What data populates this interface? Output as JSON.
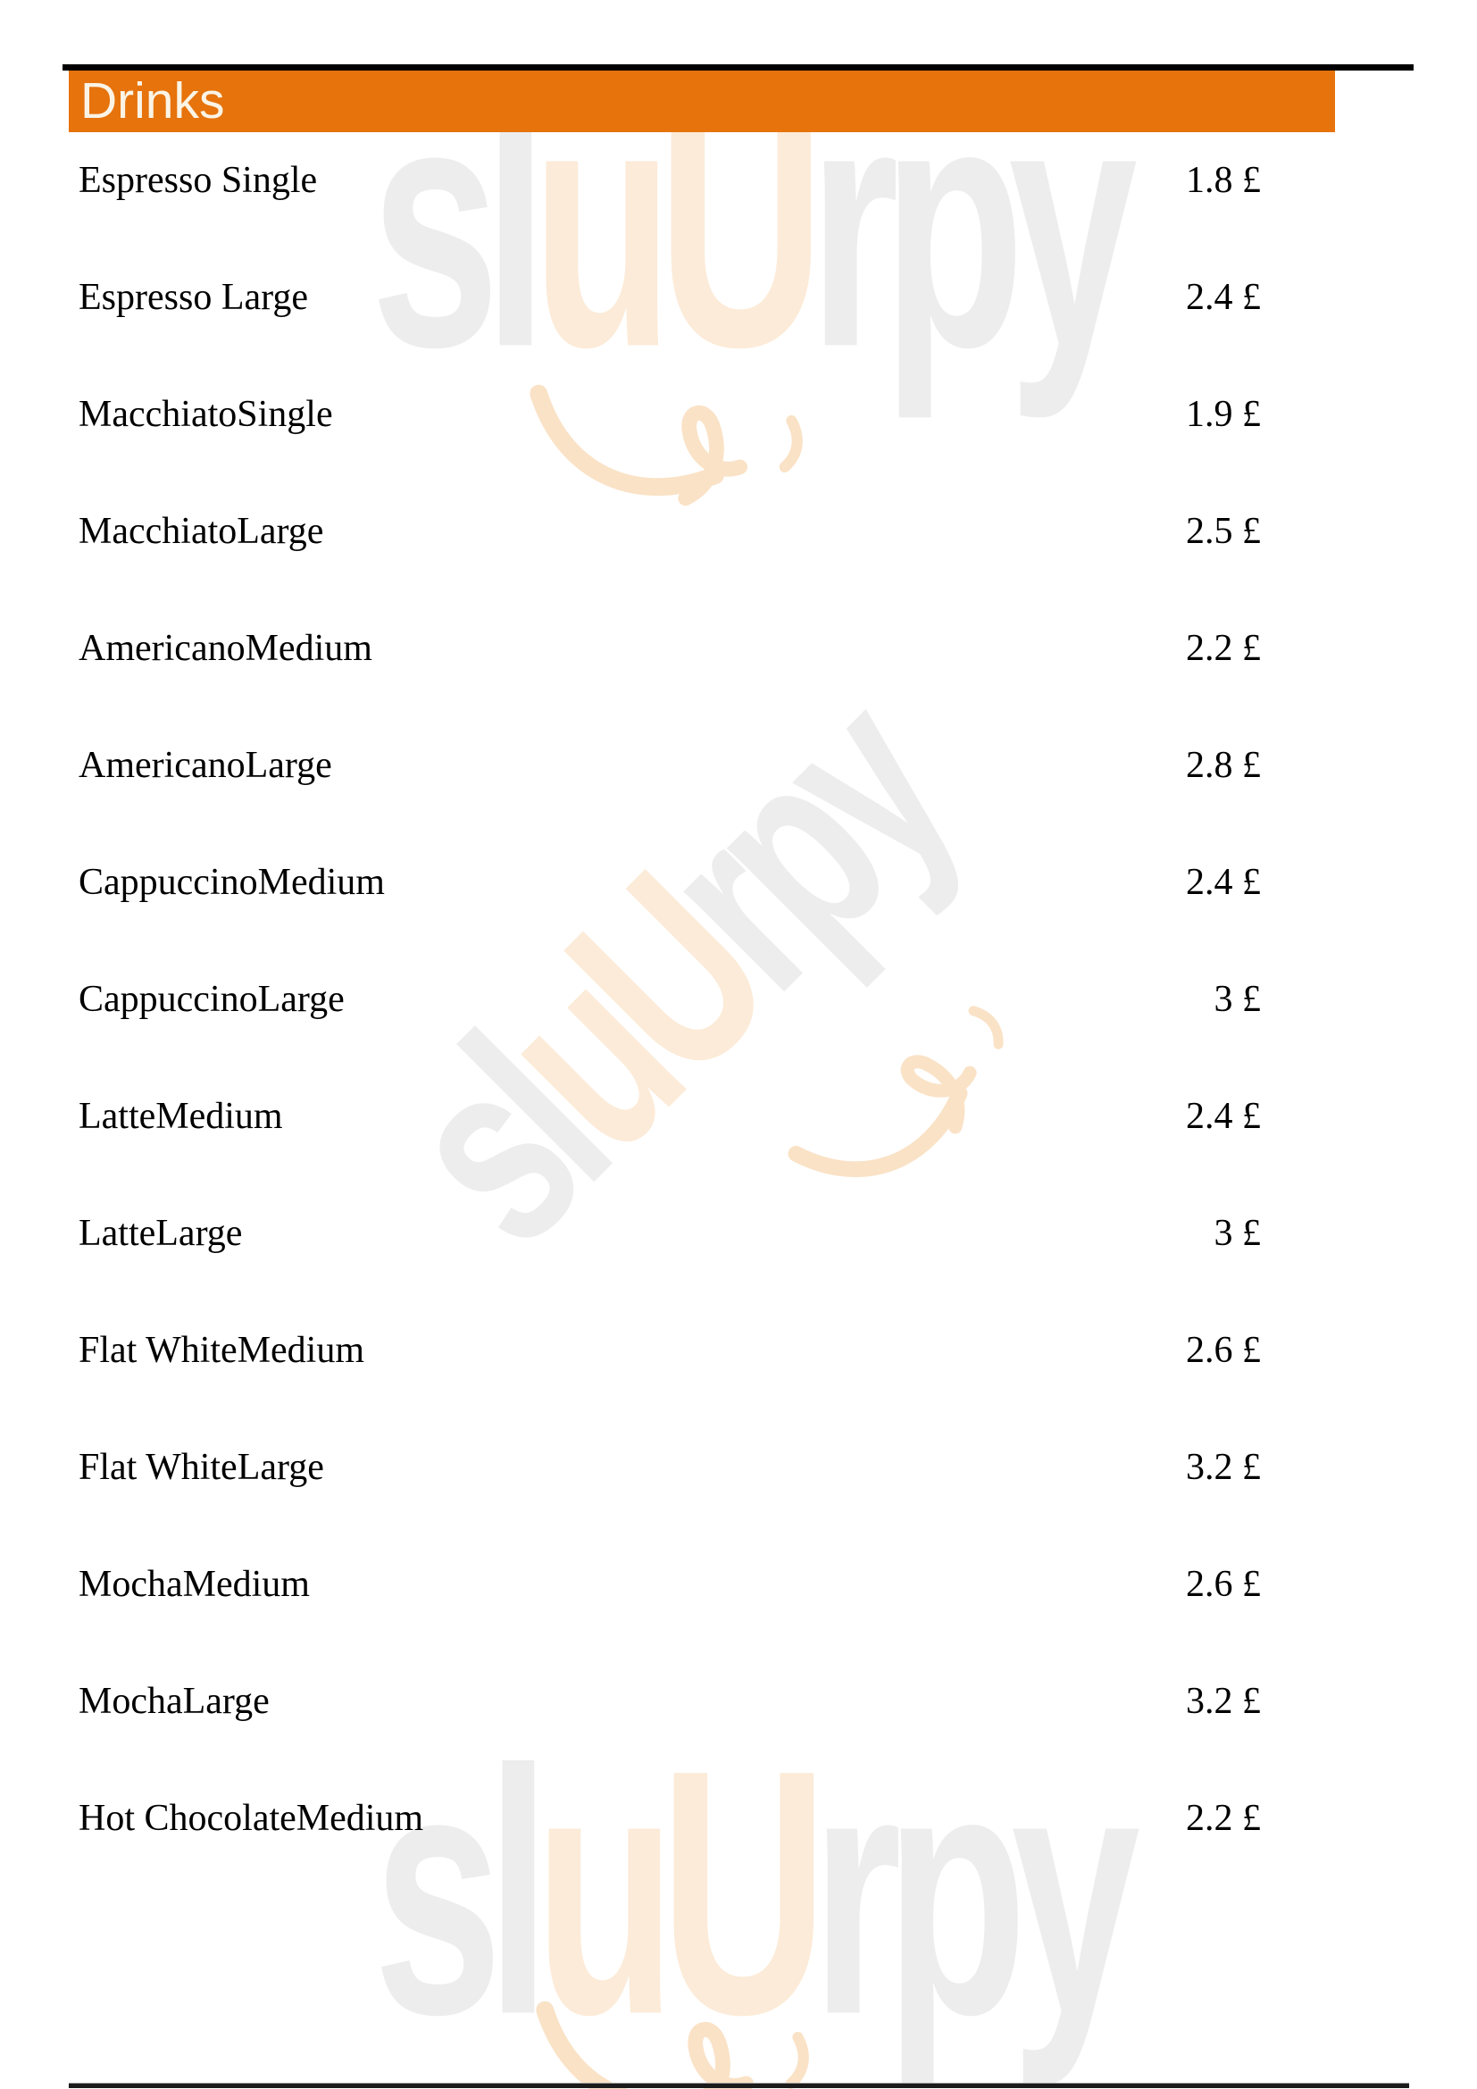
{
  "header": {
    "title": "Drinks"
  },
  "menu": {
    "items": [
      {
        "name": "Espresso Single",
        "price": "1.8 £"
      },
      {
        "name": "Espresso Large",
        "price": "2.4 £"
      },
      {
        "name": "MacchiatoSingle",
        "price": "1.9 £"
      },
      {
        "name": "MacchiatoLarge",
        "price": "2.5 £"
      },
      {
        "name": "AmericanoMedium",
        "price": "2.2 £"
      },
      {
        "name": "AmericanoLarge",
        "price": "2.8 £"
      },
      {
        "name": "CappuccinoMedium",
        "price": "2.4 £"
      },
      {
        "name": "CappuccinoLarge",
        "price": "3 £"
      },
      {
        "name": "LatteMedium",
        "price": "2.4 £"
      },
      {
        "name": "LatteLarge",
        "price": "3 £"
      },
      {
        "name": "Flat WhiteMedium",
        "price": "2.6 £"
      },
      {
        "name": "Flat WhiteLarge",
        "price": "3.2 £"
      },
      {
        "name": "MochaMedium",
        "price": "2.6 £"
      },
      {
        "name": "MochaLarge",
        "price": "3.2 £"
      },
      {
        "name": "Hot ChocolateMedium",
        "price": "2.2 £"
      }
    ]
  },
  "watermark": {
    "brand_text": "sluUrpy",
    "segments": [
      {
        "text": "sl",
        "color": "#EDEDED"
      },
      {
        "text": "uU",
        "color": "#FCEBD8"
      },
      {
        "text": "rpy",
        "color": "#EDEDED"
      }
    ],
    "swoosh_color": "#FAE2C6"
  },
  "colors": {
    "header_bg": "#E6730C",
    "header_text": "#FAF4E6",
    "top_bar": "#000000",
    "bottom_line": "#1B1B1B",
    "item_text": "#000000",
    "page_bg": "#FFFFFF"
  }
}
